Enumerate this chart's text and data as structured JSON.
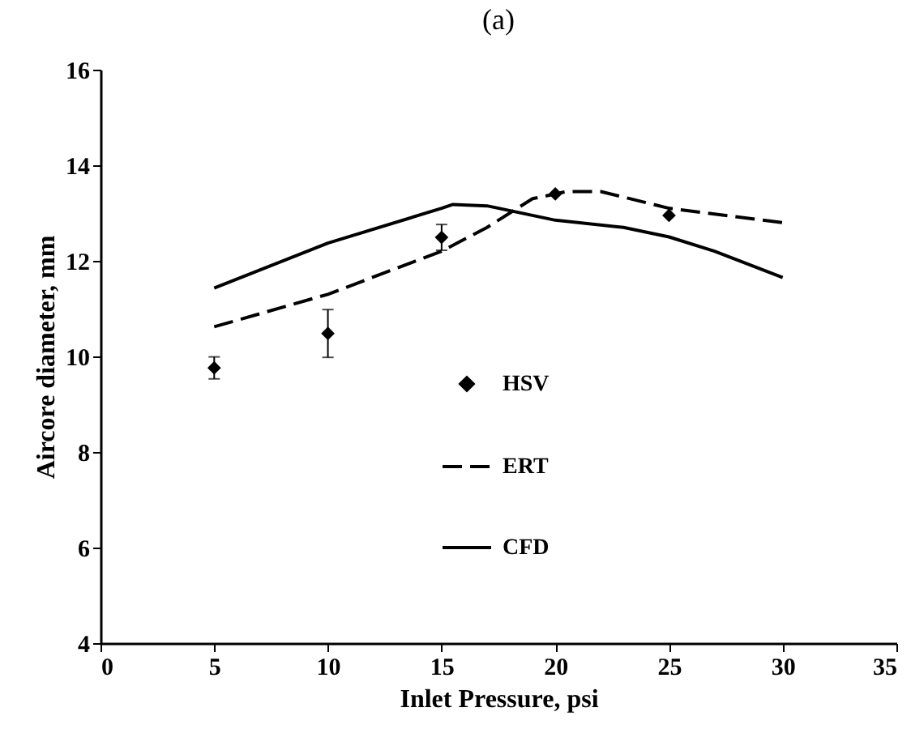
{
  "chart_data": {
    "type": "line",
    "title": "(a)",
    "xlabel": "Inlet Pressure, psi",
    "ylabel": "Aircore diameter, mm",
    "xlim": [
      0,
      35
    ],
    "xticks": [
      0,
      5,
      10,
      15,
      20,
      25,
      30,
      35
    ],
    "ylim": [
      4,
      16
    ],
    "yticks": [
      4,
      6,
      8,
      10,
      12,
      14,
      16
    ],
    "grid": false,
    "legend": "bottom right",
    "series": [
      {
        "name": "HSV",
        "type": "scatter",
        "marker": "diamond",
        "color": "#000000",
        "x": [
          5,
          10,
          15,
          20,
          25
        ],
        "values": [
          9.76,
          10.48,
          12.49,
          13.4,
          12.95
        ],
        "errors": [
          0.23,
          0.5,
          0.27,
          null,
          null
        ]
      },
      {
        "name": "ERT",
        "type": "line",
        "line_style": "dashed",
        "color": "#000000",
        "x": [
          5,
          10,
          15,
          17,
          19,
          20.5,
          22,
          25,
          30
        ],
        "values": [
          10.62,
          11.3,
          12.2,
          12.7,
          13.3,
          13.45,
          13.45,
          13.1,
          12.8
        ]
      },
      {
        "name": "CFD",
        "type": "line",
        "line_style": "solid",
        "color": "#000000",
        "x": [
          5,
          10,
          15,
          15.5,
          17,
          20,
          23,
          25,
          27,
          30
        ],
        "values": [
          11.43,
          12.37,
          13.1,
          13.18,
          13.15,
          12.85,
          12.7,
          12.5,
          12.2,
          11.65
        ]
      }
    ]
  }
}
